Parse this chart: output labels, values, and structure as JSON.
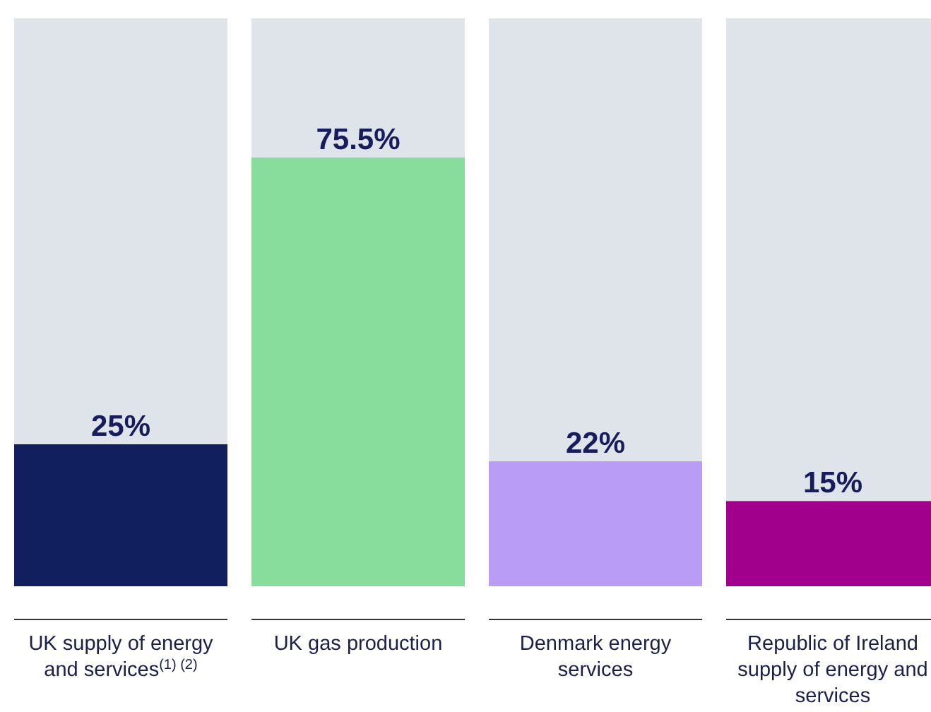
{
  "chart_data": {
    "type": "bar",
    "categories": [
      "UK supply of energy and services$^{(1) (2)}$",
      "UK gas production",
      "Denmark energy services",
      "Republic of Ireland supply of energy and services"
    ],
    "values": [
      25,
      75.5,
      22,
      15
    ],
    "colors": [
      "#121f5f",
      "#88dc9c",
      "#b99cf5",
      "#a1008d"
    ],
    "ylim": [
      0,
      100
    ],
    "value_labels": [
      "25%",
      "75.5%",
      "22%",
      "15%"
    ],
    "tick_labels": "x"
  }
}
